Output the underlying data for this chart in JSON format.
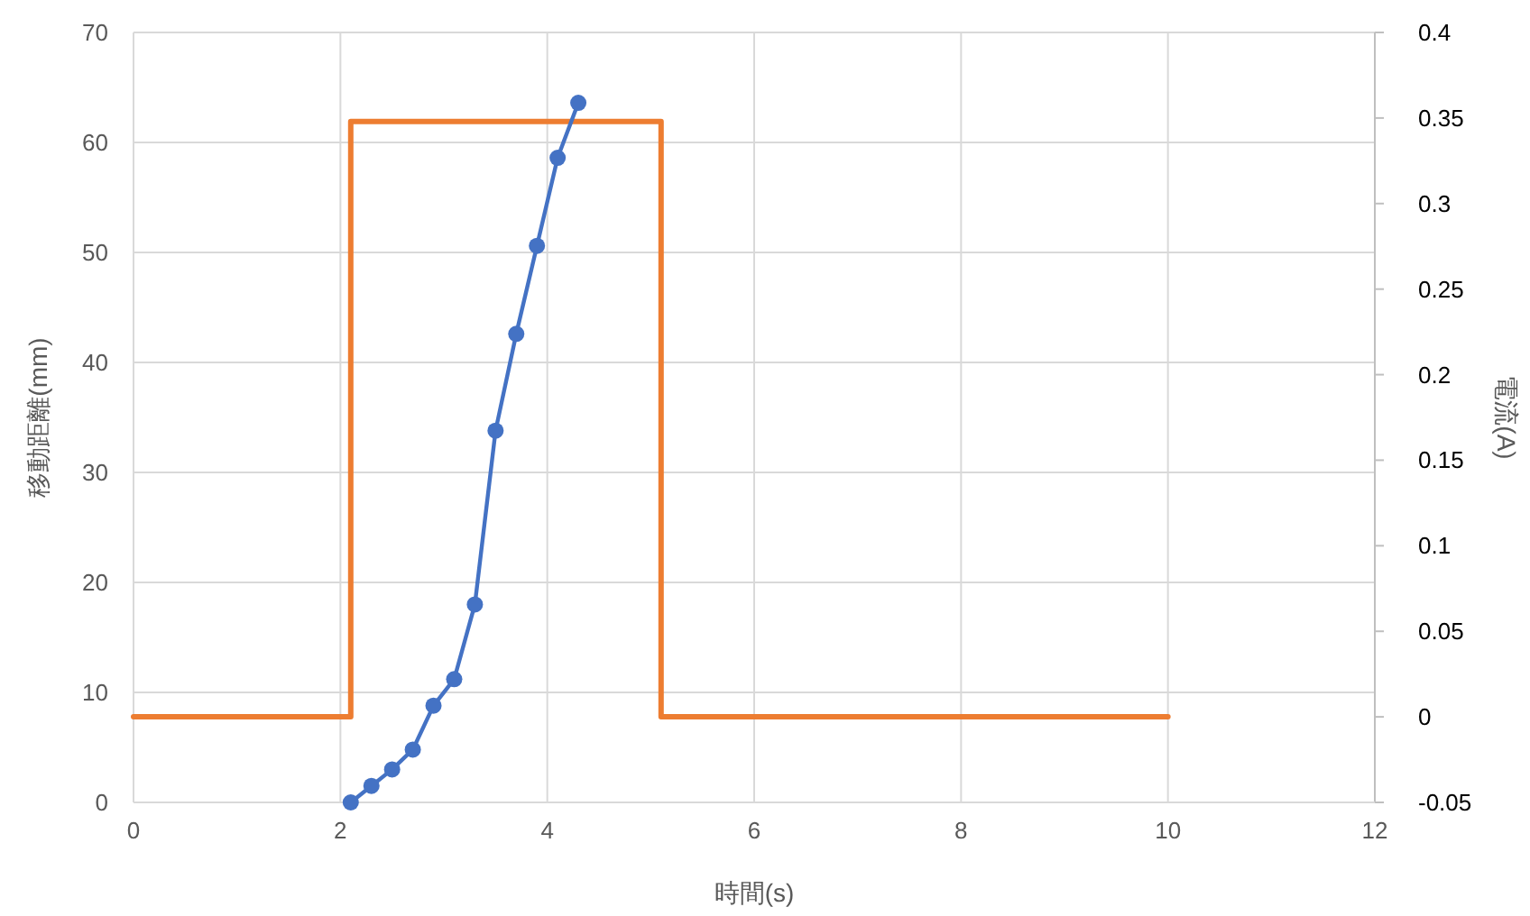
{
  "chart_data": {
    "type": "line",
    "xlabel": "時間(s)",
    "ylabel": "移動距離(mm)",
    "y2label": "電流(A)",
    "xlim": [
      0,
      12
    ],
    "xticks": [
      0,
      2,
      4,
      6,
      8,
      10,
      12
    ],
    "ylim": [
      0,
      70
    ],
    "yticks": [
      0,
      10,
      20,
      30,
      40,
      50,
      60,
      70
    ],
    "y2lim": [
      -0.05,
      0.4
    ],
    "y2ticks": [
      -0.05,
      0,
      0.05,
      0.1,
      0.15,
      0.2,
      0.25,
      0.3,
      0.35,
      0.4
    ],
    "grid": true,
    "series": [
      {
        "color": "#ed7d31",
        "axis": "y2",
        "marker": "none",
        "x": [
          0,
          2.1,
          2.1,
          5.1,
          5.1,
          10
        ],
        "values": [
          0,
          0,
          0.348,
          0.348,
          0,
          0
        ]
      },
      {
        "color": "#4472c4",
        "marker": "circle",
        "x": [
          2.1,
          2.3,
          2.5,
          2.7,
          2.9,
          3.1,
          3.3,
          3.5,
          3.7,
          3.9,
          4.1,
          4.3
        ],
        "values": [
          0,
          1.5,
          3,
          4.8,
          8.8,
          11.2,
          18,
          33.8,
          42.6,
          50.6,
          58.6,
          63.6
        ]
      }
    ]
  }
}
